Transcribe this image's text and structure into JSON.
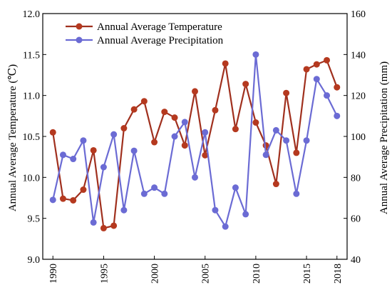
{
  "chart_data": {
    "type": "line",
    "x": [
      1990,
      1991,
      1992,
      1993,
      1994,
      1995,
      1996,
      1997,
      1998,
      1999,
      2000,
      2001,
      2002,
      2003,
      2004,
      2005,
      2006,
      2007,
      2008,
      2009,
      2010,
      2011,
      2012,
      2013,
      2014,
      2015,
      2016,
      2017,
      2018
    ],
    "xlim": [
      1989,
      2019
    ],
    "xticks": [
      1990,
      1995,
      2000,
      2005,
      2010,
      2015,
      2018
    ],
    "xtick_labels": [
      "1990",
      "1995",
      "2000",
      "2005",
      "2010",
      "2015",
      "2018"
    ],
    "xlabel": "",
    "ylabel": "Annual Average Temperature (℃)",
    "ylim": [
      9.0,
      12.0
    ],
    "yticks": [
      9.0,
      9.5,
      10.0,
      10.5,
      11.0,
      11.5,
      12.0
    ],
    "ytick_labels": [
      "9.0",
      "9.5",
      "10.0",
      "10.5",
      "11.0",
      "11.5",
      "12.0"
    ],
    "y2label": "Annual Average Precipitation (mm)",
    "y2lim": [
      40,
      160
    ],
    "y2ticks": [
      40,
      60,
      80,
      100,
      120,
      140,
      160
    ],
    "y2tick_labels": [
      "40",
      "60",
      "80",
      "100",
      "120",
      "140",
      "160"
    ],
    "grid": false,
    "legend_position": "top-left",
    "series": [
      {
        "name": "Annual Average Temperature",
        "axis": "left",
        "color": "#a0301e",
        "marker_color": "#b5391f",
        "values": [
          10.55,
          9.74,
          9.72,
          9.85,
          10.33,
          9.38,
          9.41,
          10.6,
          10.83,
          10.93,
          10.43,
          10.8,
          10.73,
          10.39,
          11.05,
          10.27,
          10.82,
          11.39,
          10.59,
          11.14,
          10.67,
          10.39,
          9.92,
          11.03,
          10.3,
          11.32,
          11.38,
          11.43,
          11.1
        ]
      },
      {
        "name": "Annual Average Precipitation",
        "axis": "right",
        "color": "#6b6bd4",
        "marker_color": "#6b6bd4",
        "values": [
          69,
          91,
          89,
          98,
          58,
          85,
          101,
          64,
          93,
          72,
          75,
          72,
          100,
          107,
          80,
          102,
          64,
          56,
          75,
          62,
          140,
          91,
          103,
          98,
          72,
          98,
          128,
          120,
          110
        ]
      }
    ]
  }
}
